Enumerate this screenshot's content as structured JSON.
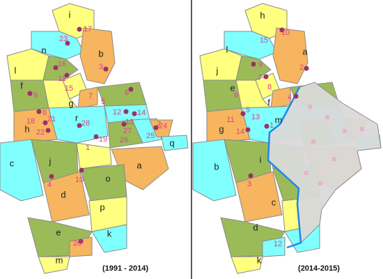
{
  "maps": [
    {
      "caption": "(1991 - 2014)",
      "regions": [
        "i",
        "n",
        "b",
        "l",
        "f",
        "g",
        "h",
        "r",
        "c",
        "j",
        "a",
        "o",
        "d",
        "p",
        "e",
        "k",
        "m",
        "q"
      ],
      "cities": [
        17,
        23,
        3,
        16,
        11,
        15,
        9,
        7,
        6,
        5,
        8,
        18,
        21,
        22,
        28,
        12,
        14,
        13,
        27,
        24,
        25,
        26,
        19,
        1,
        10,
        4,
        2,
        20
      ]
    },
    {
      "caption": "(2014-2015)",
      "regions": [
        "h",
        "l",
        "a",
        "j",
        "e",
        "f",
        "g",
        "m",
        "b",
        "i",
        "c",
        "d",
        "k"
      ],
      "cities": [
        10,
        15,
        9,
        2,
        7,
        8,
        6,
        4,
        5,
        11,
        13,
        14,
        1,
        3,
        12
      ]
    }
  ]
}
